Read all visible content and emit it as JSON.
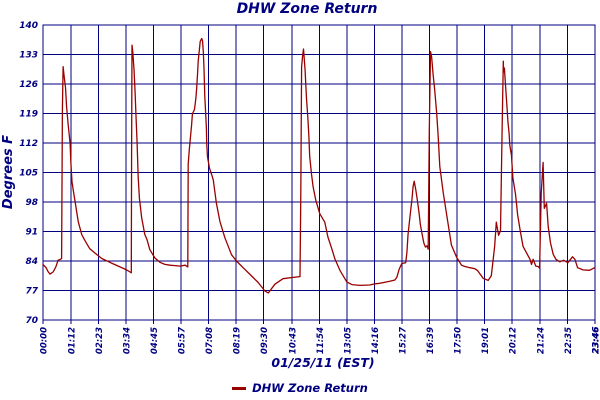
{
  "title": "DHW Zone Return",
  "colors": {
    "navy": "#000080",
    "line": "#990000",
    "background": "#ffffff"
  },
  "y_axis": {
    "label": "Degrees F",
    "ticks": [
      140,
      133,
      126,
      119,
      112,
      105,
      98,
      91,
      84,
      77,
      70
    ]
  },
  "x_axis": {
    "date_label": "01/25/11 (EST)",
    "ticks": [
      {
        "label": "00:00",
        "min": 0
      },
      {
        "label": "01:12",
        "min": 72
      },
      {
        "label": "02:23",
        "min": 143
      },
      {
        "label": "03:34",
        "min": 214
      },
      {
        "label": "04:45",
        "min": 285
      },
      {
        "label": "05:57",
        "min": 357
      },
      {
        "label": "07:08",
        "min": 428
      },
      {
        "label": "08:19",
        "min": 499
      },
      {
        "label": "09:30",
        "min": 570
      },
      {
        "label": "10:43",
        "min": 643
      },
      {
        "label": "11:54",
        "min": 714
      },
      {
        "label": "13:05",
        "min": 785
      },
      {
        "label": "14:16",
        "min": 856
      },
      {
        "label": "15:27",
        "min": 927
      },
      {
        "label": "16:39",
        "min": 999
      },
      {
        "label": "17:50",
        "min": 1070
      },
      {
        "label": "19:01",
        "min": 1141
      },
      {
        "label": "20:12",
        "min": 1212
      },
      {
        "label": "21:24",
        "min": 1284
      },
      {
        "label": "22:35",
        "min": 1355
      },
      {
        "label": "23:46",
        "min": 1426,
        "bold": true
      }
    ]
  },
  "legend": {
    "label": "DHW Zone Return"
  },
  "chart_data": {
    "type": "line",
    "title": "DHW Zone Return",
    "xlabel": "01/25/11 (EST)",
    "ylabel": "Degrees F",
    "x_unit": "minutes since 00:00 EST",
    "x_range": [
      0,
      1426
    ],
    "ylim": [
      70,
      140
    ],
    "y_step": 7,
    "grid": true,
    "legend_position": "bottom-center",
    "series": [
      {
        "name": "DHW Zone Return",
        "color": "#990000",
        "points": [
          [
            0,
            83.2
          ],
          [
            8,
            82.4
          ],
          [
            13,
            81.5
          ],
          [
            18,
            80.9
          ],
          [
            26,
            81.4
          ],
          [
            33,
            82.6
          ],
          [
            39,
            84.2
          ],
          [
            45,
            84.4
          ],
          [
            48,
            84.6
          ],
          [
            50,
            120
          ],
          [
            52,
            130.1
          ],
          [
            55,
            127.5
          ],
          [
            58,
            125.2
          ],
          [
            61,
            120.6
          ],
          [
            65,
            116.3
          ],
          [
            70,
            111.9
          ],
          [
            72,
            107.2
          ],
          [
            75,
            102.8
          ],
          [
            78,
            100.9
          ],
          [
            83,
            98.1
          ],
          [
            91,
            93.4
          ],
          [
            100,
            90.3
          ],
          [
            108,
            88.9
          ],
          [
            121,
            86.9
          ],
          [
            134,
            85.9
          ],
          [
            152,
            84.6
          ],
          [
            177,
            83.5
          ],
          [
            199,
            82.6
          ],
          [
            216,
            81.9
          ],
          [
            225,
            81.4
          ],
          [
            228,
            81.2
          ],
          [
            229,
            110
          ],
          [
            230,
            135.2
          ],
          [
            232,
            133.6
          ],
          [
            235,
            129.5
          ],
          [
            238,
            124
          ],
          [
            240,
            119
          ],
          [
            243,
            112
          ],
          [
            246,
            103.8
          ],
          [
            249,
            98.9
          ],
          [
            255,
            94.2
          ],
          [
            263,
            90.3
          ],
          [
            269,
            89
          ],
          [
            276,
            86.7
          ],
          [
            289,
            84.7
          ],
          [
            302,
            83.7
          ],
          [
            315,
            83.2
          ],
          [
            328,
            83
          ],
          [
            341,
            82.9
          ],
          [
            354,
            82.8
          ],
          [
            367,
            83
          ],
          [
            374,
            82.6
          ],
          [
            375,
            107
          ],
          [
            378,
            110.4
          ],
          [
            384,
            116.3
          ],
          [
            386,
            118.9
          ],
          [
            391,
            119.9
          ],
          [
            393,
            121.1
          ],
          [
            395,
            122.7
          ],
          [
            397,
            125.1
          ],
          [
            399,
            128.2
          ],
          [
            401,
            131.4
          ],
          [
            404,
            134.2
          ],
          [
            406,
            136.1
          ],
          [
            410,
            136.8
          ],
          [
            412,
            136.3
          ],
          [
            414,
            133.7
          ],
          [
            416,
            129.7
          ],
          [
            418,
            123
          ],
          [
            420,
            119.4
          ],
          [
            422,
            115.5
          ],
          [
            423,
            111.9
          ],
          [
            425,
            108.7
          ],
          [
            430,
            106
          ],
          [
            436,
            104.4
          ],
          [
            440,
            103.2
          ],
          [
            448,
            97.7
          ],
          [
            457,
            93.4
          ],
          [
            470,
            89.5
          ],
          [
            487,
            85.5
          ],
          [
            500,
            84
          ],
          [
            517,
            82.4
          ],
          [
            535,
            80.8
          ],
          [
            556,
            78.9
          ],
          [
            573,
            76.9
          ],
          [
            582,
            76.4
          ],
          [
            599,
            78.5
          ],
          [
            620,
            79.8
          ],
          [
            646,
            80.1
          ],
          [
            664,
            80.3
          ],
          [
            666,
            100
          ],
          [
            668,
            130.1
          ],
          [
            671,
            132.9
          ],
          [
            673,
            134.3
          ],
          [
            677,
            129.3
          ],
          [
            679,
            125.8
          ],
          [
            681,
            122.2
          ],
          [
            684,
            118.2
          ],
          [
            687,
            113.5
          ],
          [
            689,
            108.8
          ],
          [
            694,
            104.4
          ],
          [
            698,
            101.5
          ],
          [
            705,
            98.3
          ],
          [
            715,
            95.2
          ],
          [
            728,
            93.2
          ],
          [
            736,
            89.7
          ],
          [
            746,
            86.9
          ],
          [
            754,
            84.5
          ],
          [
            767,
            81.8
          ],
          [
            785,
            79
          ],
          [
            798,
            78.4
          ],
          [
            819,
            78.2
          ],
          [
            844,
            78.3
          ],
          [
            858,
            78.6
          ],
          [
            870,
            78.7
          ],
          [
            896,
            79.2
          ],
          [
            909,
            79.5
          ],
          [
            914,
            80.1
          ],
          [
            920,
            82
          ],
          [
            927,
            83.4
          ],
          [
            937,
            83.6
          ],
          [
            940,
            86
          ],
          [
            943,
            90.2
          ],
          [
            948,
            94.6
          ],
          [
            953,
            98.5
          ],
          [
            956,
            101.7
          ],
          [
            959,
            102.9
          ],
          [
            963,
            100.9
          ],
          [
            967,
            98.5
          ],
          [
            971,
            95.7
          ],
          [
            975,
            92.6
          ],
          [
            980,
            90
          ],
          [
            984,
            88.2
          ],
          [
            988,
            87.3
          ],
          [
            992,
            87.6
          ],
          [
            995,
            86.8
          ],
          [
            998,
            115
          ],
          [
            1001,
            133.7
          ],
          [
            1004,
            132.5
          ],
          [
            1008,
            128
          ],
          [
            1012,
            124.6
          ],
          [
            1017,
            119
          ],
          [
            1021,
            113.5
          ],
          [
            1025,
            106.4
          ],
          [
            1034,
            100.1
          ],
          [
            1047,
            92.5
          ],
          [
            1055,
            87.8
          ],
          [
            1068,
            85
          ],
          [
            1081,
            83
          ],
          [
            1090,
            82.7
          ],
          [
            1103,
            82.4
          ],
          [
            1115,
            82.2
          ],
          [
            1123,
            81.7
          ],
          [
            1137,
            79.9
          ],
          [
            1150,
            79.4
          ],
          [
            1158,
            80.5
          ],
          [
            1163,
            84.4
          ],
          [
            1167,
            87.6
          ],
          [
            1171,
            93.2
          ],
          [
            1177,
            90.1
          ],
          [
            1182,
            91.2
          ],
          [
            1186,
            115
          ],
          [
            1189,
            131.4
          ],
          [
            1190,
            128.8
          ],
          [
            1192,
            129.8
          ],
          [
            1196,
            124
          ],
          [
            1199,
            120.2
          ],
          [
            1201,
            117.1
          ],
          [
            1204,
            114.3
          ],
          [
            1206,
            111.5
          ],
          [
            1210,
            109.2
          ],
          [
            1214,
            103.7
          ],
          [
            1221,
            99.7
          ],
          [
            1226,
            95
          ],
          [
            1233,
            91.1
          ],
          [
            1240,
            87.5
          ],
          [
            1251,
            85.6
          ],
          [
            1258,
            84.4
          ],
          [
            1262,
            83.2
          ],
          [
            1266,
            84.4
          ],
          [
            1273,
            82.8
          ],
          [
            1279,
            82.7
          ],
          [
            1283,
            82.3
          ],
          [
            1287,
            100
          ],
          [
            1292,
            107.4
          ],
          [
            1294,
            100
          ],
          [
            1295,
            96.5
          ],
          [
            1301,
            97.7
          ],
          [
            1305,
            92.2
          ],
          [
            1311,
            88.3
          ],
          [
            1318,
            85.6
          ],
          [
            1325,
            84.4
          ],
          [
            1335,
            83.8
          ],
          [
            1345,
            84.2
          ],
          [
            1356,
            83.6
          ],
          [
            1368,
            85
          ],
          [
            1374,
            84.4
          ],
          [
            1381,
            82.4
          ],
          [
            1395,
            81.9
          ],
          [
            1412,
            81.8
          ],
          [
            1425,
            82.4
          ]
        ]
      }
    ]
  }
}
